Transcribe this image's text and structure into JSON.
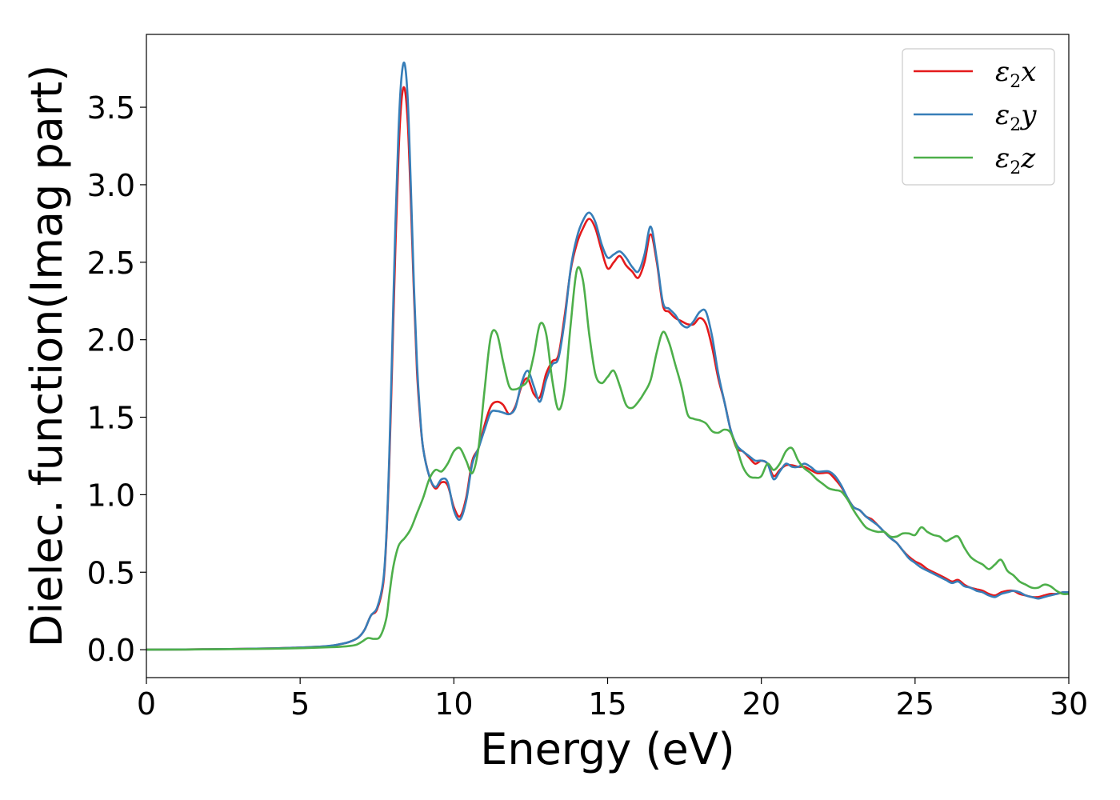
{
  "chart_data": {
    "type": "line",
    "xlabel": "Energy (eV)",
    "ylabel": "Dielec. function(Imag part)",
    "xlim": [
      0,
      30
    ],
    "ylim": [
      -0.18,
      3.97
    ],
    "xticks": [
      0,
      5,
      10,
      15,
      20,
      25,
      30
    ],
    "xtick_labels": [
      "0",
      "5",
      "10",
      "15",
      "20",
      "25",
      "30"
    ],
    "yticks": [
      0.0,
      0.5,
      1.0,
      1.5,
      2.0,
      2.5,
      3.0,
      3.5
    ],
    "ytick_labels": [
      "0.0",
      "0.5",
      "1.0",
      "1.5",
      "2.0",
      "2.5",
      "3.0",
      "3.5"
    ],
    "grid": false,
    "legend_position": "top-right",
    "series": [
      {
        "name": "ε2x",
        "legend_symbol": "ε",
        "legend_sub": "2",
        "legend_var": "x",
        "color": "#e41a1c",
        "x": [
          0,
          2,
          4,
          5,
          5.5,
          6,
          6.3,
          6.6,
          6.9,
          7.1,
          7.3,
          7.5,
          7.7,
          7.8,
          7.9,
          8.0,
          8.1,
          8.2,
          8.3,
          8.4,
          8.5,
          8.6,
          8.7,
          8.8,
          8.9,
          9.0,
          9.2,
          9.4,
          9.6,
          9.8,
          10.0,
          10.2,
          10.4,
          10.6,
          10.8,
          11.0,
          11.2,
          11.4,
          11.6,
          11.8,
          12.0,
          12.2,
          12.4,
          12.6,
          12.8,
          13.0,
          13.2,
          13.4,
          13.6,
          13.8,
          14.0,
          14.2,
          14.4,
          14.6,
          14.8,
          15.0,
          15.2,
          15.4,
          15.6,
          15.8,
          16.0,
          16.2,
          16.4,
          16.6,
          16.8,
          17.0,
          17.2,
          17.4,
          17.6,
          17.8,
          18.0,
          18.2,
          18.4,
          18.6,
          18.8,
          19.0,
          19.2,
          19.4,
          19.6,
          19.8,
          20.0,
          20.2,
          20.4,
          20.6,
          20.8,
          21.0,
          21.2,
          21.4,
          21.6,
          21.8,
          22.0,
          22.2,
          22.4,
          22.6,
          22.8,
          23.0,
          23.2,
          23.4,
          23.6,
          23.8,
          24.0,
          24.2,
          24.4,
          24.6,
          24.8,
          25.0,
          25.2,
          25.4,
          25.6,
          25.8,
          26.0,
          26.2,
          26.4,
          26.6,
          26.8,
          27.0,
          27.2,
          27.4,
          27.6,
          27.8,
          28.0,
          28.2,
          28.4,
          28.6,
          28.8,
          29.0,
          29.2,
          29.4,
          29.6,
          29.8,
          30.0
        ],
        "y": [
          0.0,
          0.003,
          0.008,
          0.014,
          0.018,
          0.025,
          0.035,
          0.05,
          0.08,
          0.13,
          0.22,
          0.26,
          0.42,
          0.7,
          1.2,
          1.9,
          2.6,
          3.2,
          3.55,
          3.62,
          3.4,
          2.9,
          2.3,
          1.8,
          1.5,
          1.3,
          1.12,
          1.04,
          1.08,
          1.06,
          0.92,
          0.86,
          0.98,
          1.22,
          1.3,
          1.45,
          1.57,
          1.6,
          1.58,
          1.52,
          1.57,
          1.7,
          1.75,
          1.65,
          1.63,
          1.78,
          1.86,
          1.9,
          2.15,
          2.45,
          2.62,
          2.72,
          2.78,
          2.72,
          2.58,
          2.46,
          2.5,
          2.54,
          2.48,
          2.44,
          2.4,
          2.5,
          2.68,
          2.5,
          2.22,
          2.18,
          2.14,
          2.12,
          2.1,
          2.1,
          2.14,
          2.1,
          1.95,
          1.75,
          1.6,
          1.42,
          1.3,
          1.28,
          1.24,
          1.2,
          1.22,
          1.2,
          1.12,
          1.16,
          1.19,
          1.19,
          1.18,
          1.18,
          1.16,
          1.14,
          1.14,
          1.14,
          1.1,
          1.05,
          0.98,
          0.92,
          0.9,
          0.86,
          0.84,
          0.8,
          0.76,
          0.72,
          0.69,
          0.64,
          0.6,
          0.57,
          0.55,
          0.52,
          0.5,
          0.48,
          0.46,
          0.44,
          0.45,
          0.42,
          0.4,
          0.39,
          0.38,
          0.36,
          0.35,
          0.37,
          0.38,
          0.38,
          0.36,
          0.35,
          0.34,
          0.34,
          0.35,
          0.36,
          0.36,
          0.37,
          0.37
        ]
      },
      {
        "name": "ε2y",
        "legend_symbol": "ε",
        "legend_sub": "2",
        "legend_var": "y",
        "color": "#377eb8",
        "x": [
          0,
          2,
          4,
          5,
          5.5,
          6,
          6.3,
          6.6,
          6.9,
          7.1,
          7.3,
          7.5,
          7.7,
          7.8,
          7.9,
          8.0,
          8.1,
          8.2,
          8.3,
          8.4,
          8.5,
          8.6,
          8.7,
          8.8,
          8.9,
          9.0,
          9.2,
          9.4,
          9.6,
          9.8,
          10.0,
          10.2,
          10.4,
          10.6,
          10.8,
          11.0,
          11.2,
          11.4,
          11.6,
          11.8,
          12.0,
          12.2,
          12.4,
          12.6,
          12.8,
          13.0,
          13.2,
          13.4,
          13.6,
          13.8,
          14.0,
          14.2,
          14.4,
          14.6,
          14.8,
          15.0,
          15.2,
          15.4,
          15.6,
          15.8,
          16.0,
          16.2,
          16.4,
          16.6,
          16.8,
          17.0,
          17.2,
          17.4,
          17.6,
          17.8,
          18.0,
          18.2,
          18.4,
          18.6,
          18.8,
          19.0,
          19.2,
          19.4,
          19.6,
          19.8,
          20.0,
          20.2,
          20.4,
          20.6,
          20.8,
          21.0,
          21.2,
          21.4,
          21.6,
          21.8,
          22.0,
          22.2,
          22.4,
          22.6,
          22.8,
          23.0,
          23.2,
          23.4,
          23.6,
          23.8,
          24.0,
          24.2,
          24.4,
          24.6,
          24.8,
          25.0,
          25.2,
          25.4,
          25.6,
          25.8,
          26.0,
          26.2,
          26.4,
          26.6,
          26.8,
          27.0,
          27.2,
          27.4,
          27.6,
          27.8,
          28.0,
          28.2,
          28.4,
          28.6,
          28.8,
          29.0,
          29.2,
          29.4,
          29.6,
          29.8,
          30.0
        ],
        "y": [
          0.0,
          0.003,
          0.008,
          0.014,
          0.018,
          0.026,
          0.036,
          0.05,
          0.08,
          0.13,
          0.22,
          0.27,
          0.44,
          0.72,
          1.25,
          2.0,
          2.75,
          3.35,
          3.7,
          3.78,
          3.55,
          3.0,
          2.35,
          1.85,
          1.52,
          1.3,
          1.12,
          1.05,
          1.1,
          1.08,
          0.9,
          0.84,
          0.96,
          1.2,
          1.3,
          1.42,
          1.53,
          1.54,
          1.53,
          1.52,
          1.56,
          1.72,
          1.8,
          1.7,
          1.6,
          1.74,
          1.84,
          1.88,
          2.12,
          2.46,
          2.66,
          2.77,
          2.82,
          2.76,
          2.62,
          2.53,
          2.55,
          2.57,
          2.53,
          2.47,
          2.44,
          2.55,
          2.73,
          2.52,
          2.24,
          2.2,
          2.16,
          2.1,
          2.08,
          2.12,
          2.18,
          2.18,
          2.02,
          1.78,
          1.6,
          1.42,
          1.32,
          1.28,
          1.25,
          1.22,
          1.22,
          1.2,
          1.1,
          1.15,
          1.2,
          1.18,
          1.18,
          1.2,
          1.18,
          1.15,
          1.15,
          1.15,
          1.12,
          1.06,
          0.98,
          0.92,
          0.9,
          0.86,
          0.83,
          0.8,
          0.76,
          0.72,
          0.69,
          0.64,
          0.59,
          0.56,
          0.53,
          0.51,
          0.49,
          0.47,
          0.45,
          0.43,
          0.44,
          0.41,
          0.4,
          0.38,
          0.37,
          0.35,
          0.34,
          0.36,
          0.37,
          0.38,
          0.37,
          0.35,
          0.34,
          0.33,
          0.34,
          0.35,
          0.36,
          0.37,
          0.37
        ]
      },
      {
        "name": "ε2z",
        "legend_symbol": "ε",
        "legend_sub": "2",
        "legend_var": "z",
        "color": "#4daf4a",
        "x": [
          0,
          2,
          4,
          5,
          6,
          6.5,
          6.8,
          7.0,
          7.2,
          7.4,
          7.6,
          7.8,
          7.9,
          8.0,
          8.1,
          8.2,
          8.3,
          8.4,
          8.6,
          8.8,
          9.0,
          9.2,
          9.4,
          9.6,
          9.8,
          10.0,
          10.2,
          10.4,
          10.6,
          10.8,
          11.0,
          11.2,
          11.4,
          11.6,
          11.8,
          12.0,
          12.2,
          12.4,
          12.6,
          12.8,
          13.0,
          13.2,
          13.4,
          13.6,
          13.8,
          14.0,
          14.2,
          14.4,
          14.6,
          14.8,
          15.0,
          15.2,
          15.4,
          15.6,
          15.8,
          16.0,
          16.2,
          16.4,
          16.6,
          16.8,
          17.0,
          17.2,
          17.4,
          17.6,
          17.8,
          18.0,
          18.2,
          18.4,
          18.6,
          18.8,
          19.0,
          19.2,
          19.4,
          19.6,
          19.8,
          20.0,
          20.2,
          20.4,
          20.6,
          20.8,
          21.0,
          21.2,
          21.4,
          21.6,
          21.8,
          22.0,
          22.2,
          22.4,
          22.6,
          22.8,
          23.0,
          23.2,
          23.4,
          23.6,
          23.8,
          24.0,
          24.2,
          24.4,
          24.6,
          24.8,
          25.0,
          25.2,
          25.4,
          25.6,
          25.8,
          26.0,
          26.2,
          26.4,
          26.6,
          26.8,
          27.0,
          27.2,
          27.4,
          27.6,
          27.8,
          28.0,
          28.2,
          28.4,
          28.6,
          28.8,
          29.0,
          29.2,
          29.4,
          29.6,
          29.8,
          30.0
        ],
        "y": [
          0.0,
          0.002,
          0.006,
          0.01,
          0.016,
          0.022,
          0.03,
          0.05,
          0.075,
          0.07,
          0.085,
          0.2,
          0.35,
          0.5,
          0.6,
          0.67,
          0.7,
          0.72,
          0.78,
          0.88,
          0.98,
          1.1,
          1.16,
          1.15,
          1.2,
          1.28,
          1.3,
          1.22,
          1.14,
          1.3,
          1.68,
          2.02,
          2.04,
          1.86,
          1.7,
          1.68,
          1.7,
          1.74,
          1.9,
          2.1,
          2.04,
          1.74,
          1.55,
          1.68,
          2.1,
          2.45,
          2.38,
          2.04,
          1.78,
          1.72,
          1.76,
          1.8,
          1.7,
          1.58,
          1.56,
          1.6,
          1.66,
          1.74,
          1.92,
          2.05,
          1.98,
          1.84,
          1.7,
          1.52,
          1.49,
          1.48,
          1.46,
          1.41,
          1.4,
          1.42,
          1.4,
          1.3,
          1.18,
          1.12,
          1.11,
          1.12,
          1.2,
          1.16,
          1.2,
          1.28,
          1.3,
          1.22,
          1.17,
          1.14,
          1.1,
          1.07,
          1.04,
          1.03,
          1.02,
          0.97,
          0.9,
          0.84,
          0.79,
          0.77,
          0.76,
          0.76,
          0.73,
          0.73,
          0.75,
          0.75,
          0.74,
          0.79,
          0.76,
          0.74,
          0.73,
          0.7,
          0.72,
          0.73,
          0.66,
          0.6,
          0.57,
          0.55,
          0.52,
          0.55,
          0.58,
          0.51,
          0.48,
          0.44,
          0.42,
          0.4,
          0.4,
          0.42,
          0.41,
          0.38,
          0.36,
          0.36
        ]
      }
    ]
  }
}
